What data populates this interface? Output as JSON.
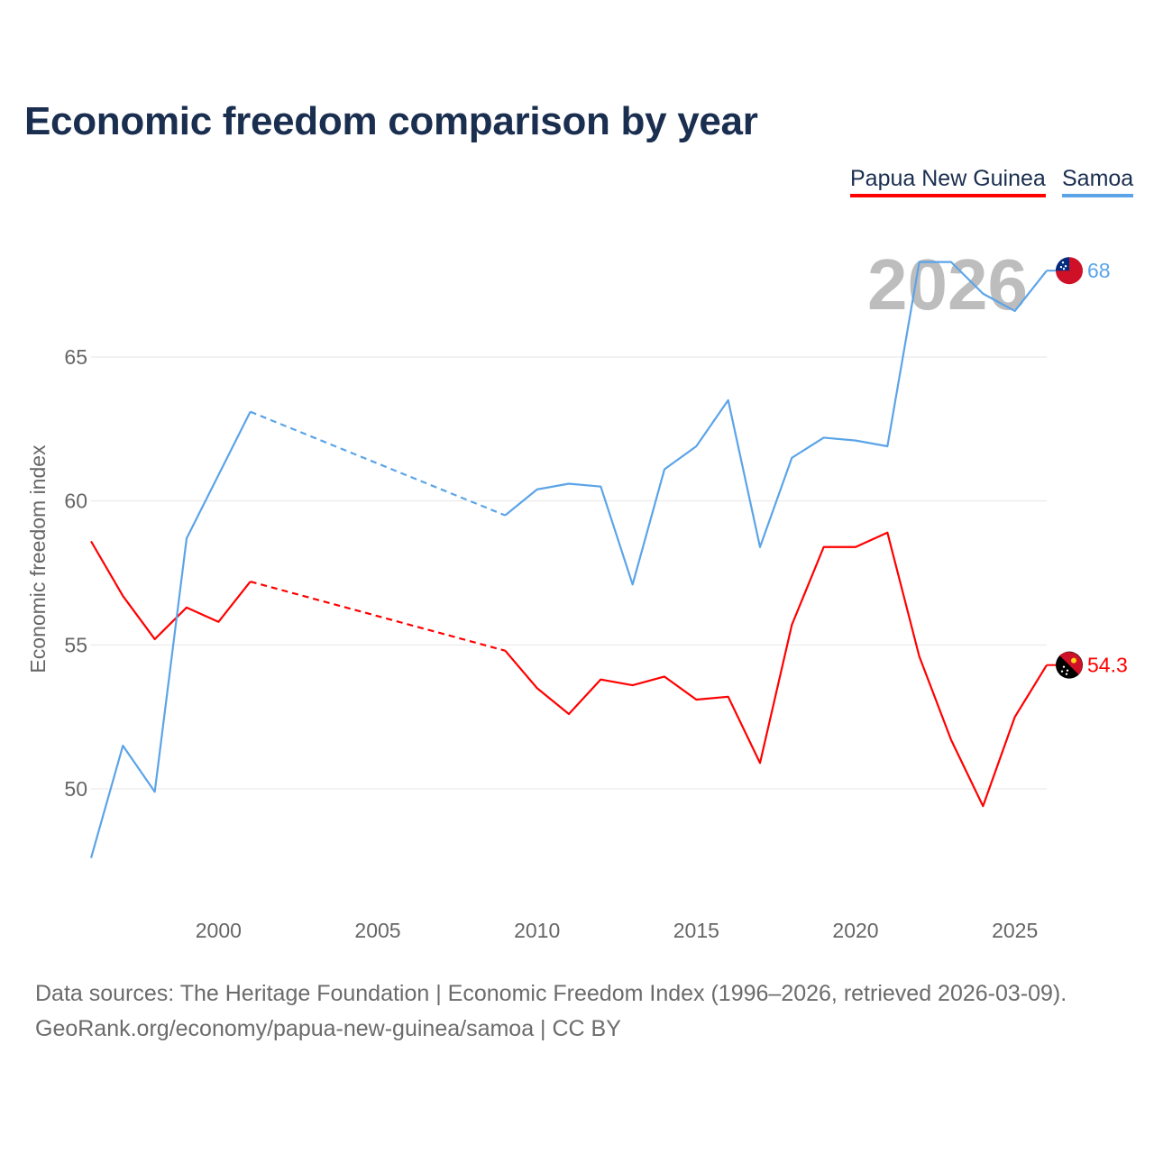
{
  "chart_data": {
    "type": "line",
    "title": "Economic freedom comparison by year",
    "ylabel": "Economic freedom index",
    "xlabel": "",
    "ylim": [
      47,
      68.5
    ],
    "xlim": [
      1996,
      2026
    ],
    "yticks": [
      50,
      55,
      60,
      65
    ],
    "xticks": [
      2000,
      2005,
      2010,
      2015,
      2020,
      2025
    ],
    "grid": true,
    "legend_position": "top-right",
    "year_label": "2026",
    "x": [
      1996,
      1997,
      1998,
      1999,
      2000,
      2001,
      2002,
      2003,
      2004,
      2005,
      2006,
      2007,
      2008,
      2009,
      2010,
      2011,
      2012,
      2013,
      2014,
      2015,
      2016,
      2017,
      2018,
      2019,
      2020,
      2021,
      2022,
      2023,
      2024,
      2025,
      2026
    ],
    "series": [
      {
        "name": "Papua New Guinea",
        "color": "#ff0000",
        "end_label": "54.3",
        "values": [
          58.6,
          56.7,
          55.2,
          56.3,
          55.8,
          57.2,
          null,
          null,
          null,
          null,
          null,
          null,
          null,
          54.8,
          53.5,
          52.6,
          53.8,
          53.6,
          53.9,
          53.1,
          53.2,
          50.9,
          55.7,
          58.4,
          58.4,
          58.9,
          54.6,
          51.7,
          49.4,
          52.5,
          54.3
        ]
      },
      {
        "name": "Samoa",
        "color": "#5ba4e8",
        "end_label": "68",
        "values": [
          47.6,
          51.5,
          49.9,
          58.7,
          60.9,
          63.1,
          null,
          null,
          null,
          null,
          null,
          null,
          null,
          59.5,
          60.4,
          60.6,
          60.5,
          57.1,
          61.1,
          61.9,
          63.5,
          58.4,
          61.5,
          62.2,
          62.1,
          61.9,
          68.3,
          68.3,
          67.2,
          66.6,
          68.0
        ]
      }
    ]
  },
  "footer": {
    "line1": "Data sources: The Heritage Foundation | Economic Freedom Index (1996–2026, retrieved 2026-03-09).",
    "line2": "GeoRank.org/economy/papua-new-guinea/samoa | CC BY"
  }
}
